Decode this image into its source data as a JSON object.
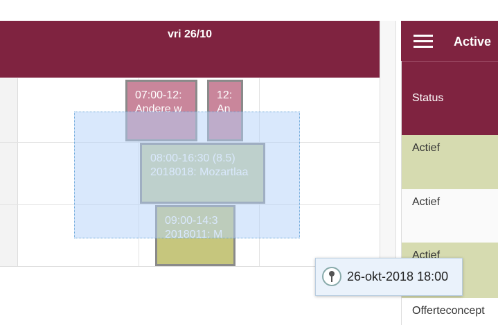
{
  "header": {
    "day": "vri 26/10"
  },
  "events": [
    {
      "time": "07:00-12:",
      "label": "Andere w"
    },
    {
      "time": "12:",
      "label": "An"
    },
    {
      "time": "08:00-16:30 (8.5)",
      "label": "2018018: Mozartlaa"
    },
    {
      "time": "09:00-14:3",
      "label": "2018011: M"
    }
  ],
  "tooltip": {
    "text": "26-okt-2018 18:00"
  },
  "panel": {
    "title": "Active",
    "column": "Status",
    "rows": [
      "Actief",
      "Actief",
      "Actief",
      "Offerteconcept"
    ]
  }
}
